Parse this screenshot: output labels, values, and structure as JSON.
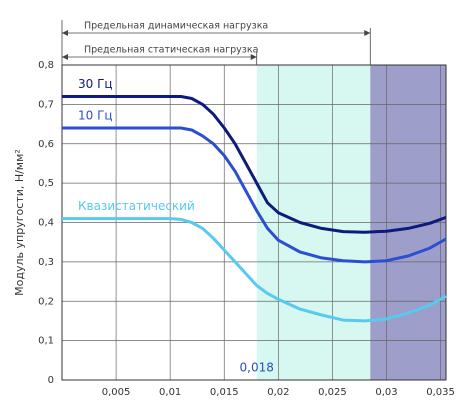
{
  "chart_data": {
    "type": "line",
    "ylabel": "Модуль упругости, Н/мм²",
    "annotations": [
      "Предельная динамическая нагрузка",
      "Предельная статическая нагрузка"
    ],
    "regions": [
      {
        "start": {
          "value": 0.018,
          "label": "0,018"
        },
        "end": 0.0285,
        "color": "#d6f8f1"
      },
      {
        "start": 0.0285,
        "end": 0.0355,
        "color": "#9d9ec9"
      }
    ],
    "x": [
      0,
      0.005,
      0.009,
      0.01,
      0.011,
      0.012,
      0.013,
      0.014,
      0.015,
      0.016,
      0.017,
      0.018,
      0.019,
      0.02,
      0.022,
      0.024,
      0.026,
      0.028,
      0.03,
      0.032,
      0.034,
      0.0355
    ],
    "series": [
      {
        "name": "30 Гц",
        "color": "#0f1b7c",
        "values": [
          0.72,
          0.72,
          0.72,
          0.72,
          0.72,
          0.715,
          0.7,
          0.675,
          0.64,
          0.6,
          0.55,
          0.5,
          0.45,
          0.425,
          0.4,
          0.385,
          0.377,
          0.375,
          0.378,
          0.385,
          0.398,
          0.413
        ]
      },
      {
        "name": "10 Гц",
        "color": "#2c4fd0",
        "values": [
          0.64,
          0.64,
          0.64,
          0.64,
          0.64,
          0.635,
          0.62,
          0.6,
          0.57,
          0.53,
          0.48,
          0.43,
          0.385,
          0.355,
          0.325,
          0.31,
          0.303,
          0.3,
          0.303,
          0.315,
          0.335,
          0.358
        ]
      },
      {
        "name": "Квазистатический",
        "color": "#58c9ef",
        "values": [
          0.41,
          0.41,
          0.41,
          0.41,
          0.408,
          0.4,
          0.385,
          0.36,
          0.33,
          0.3,
          0.27,
          0.24,
          0.22,
          0.205,
          0.18,
          0.165,
          0.152,
          0.15,
          0.155,
          0.17,
          0.19,
          0.213
        ]
      }
    ],
    "xlim": [
      0,
      0.0355
    ],
    "ylim": [
      0,
      0.8
    ],
    "xticks": [
      {
        "value": 0.005,
        "label": "0,005"
      },
      {
        "value": 0.01,
        "label": "0,01"
      },
      {
        "value": 0.015,
        "label": "0,015"
      },
      {
        "value": 0.02,
        "label": "0,02"
      },
      {
        "value": 0.025,
        "label": "0,025"
      },
      {
        "value": 0.03,
        "label": "0,03"
      },
      {
        "value": 0.035,
        "label": "0,035"
      }
    ],
    "yticks": [
      0,
      {
        "value": 0.1,
        "label": "0,1"
      },
      {
        "value": 0.2,
        "label": "0,2"
      },
      {
        "value": 0.3,
        "label": "0,3"
      },
      {
        "value": 0.4,
        "label": "0,4"
      },
      {
        "value": 0.5,
        "label": "0,5"
      },
      {
        "value": 0.6,
        "label": "0,6"
      },
      {
        "value": 0.7,
        "label": "0,7"
      },
      {
        "value": 0.8,
        "label": "0,8"
      }
    ],
    "grid": true
  }
}
